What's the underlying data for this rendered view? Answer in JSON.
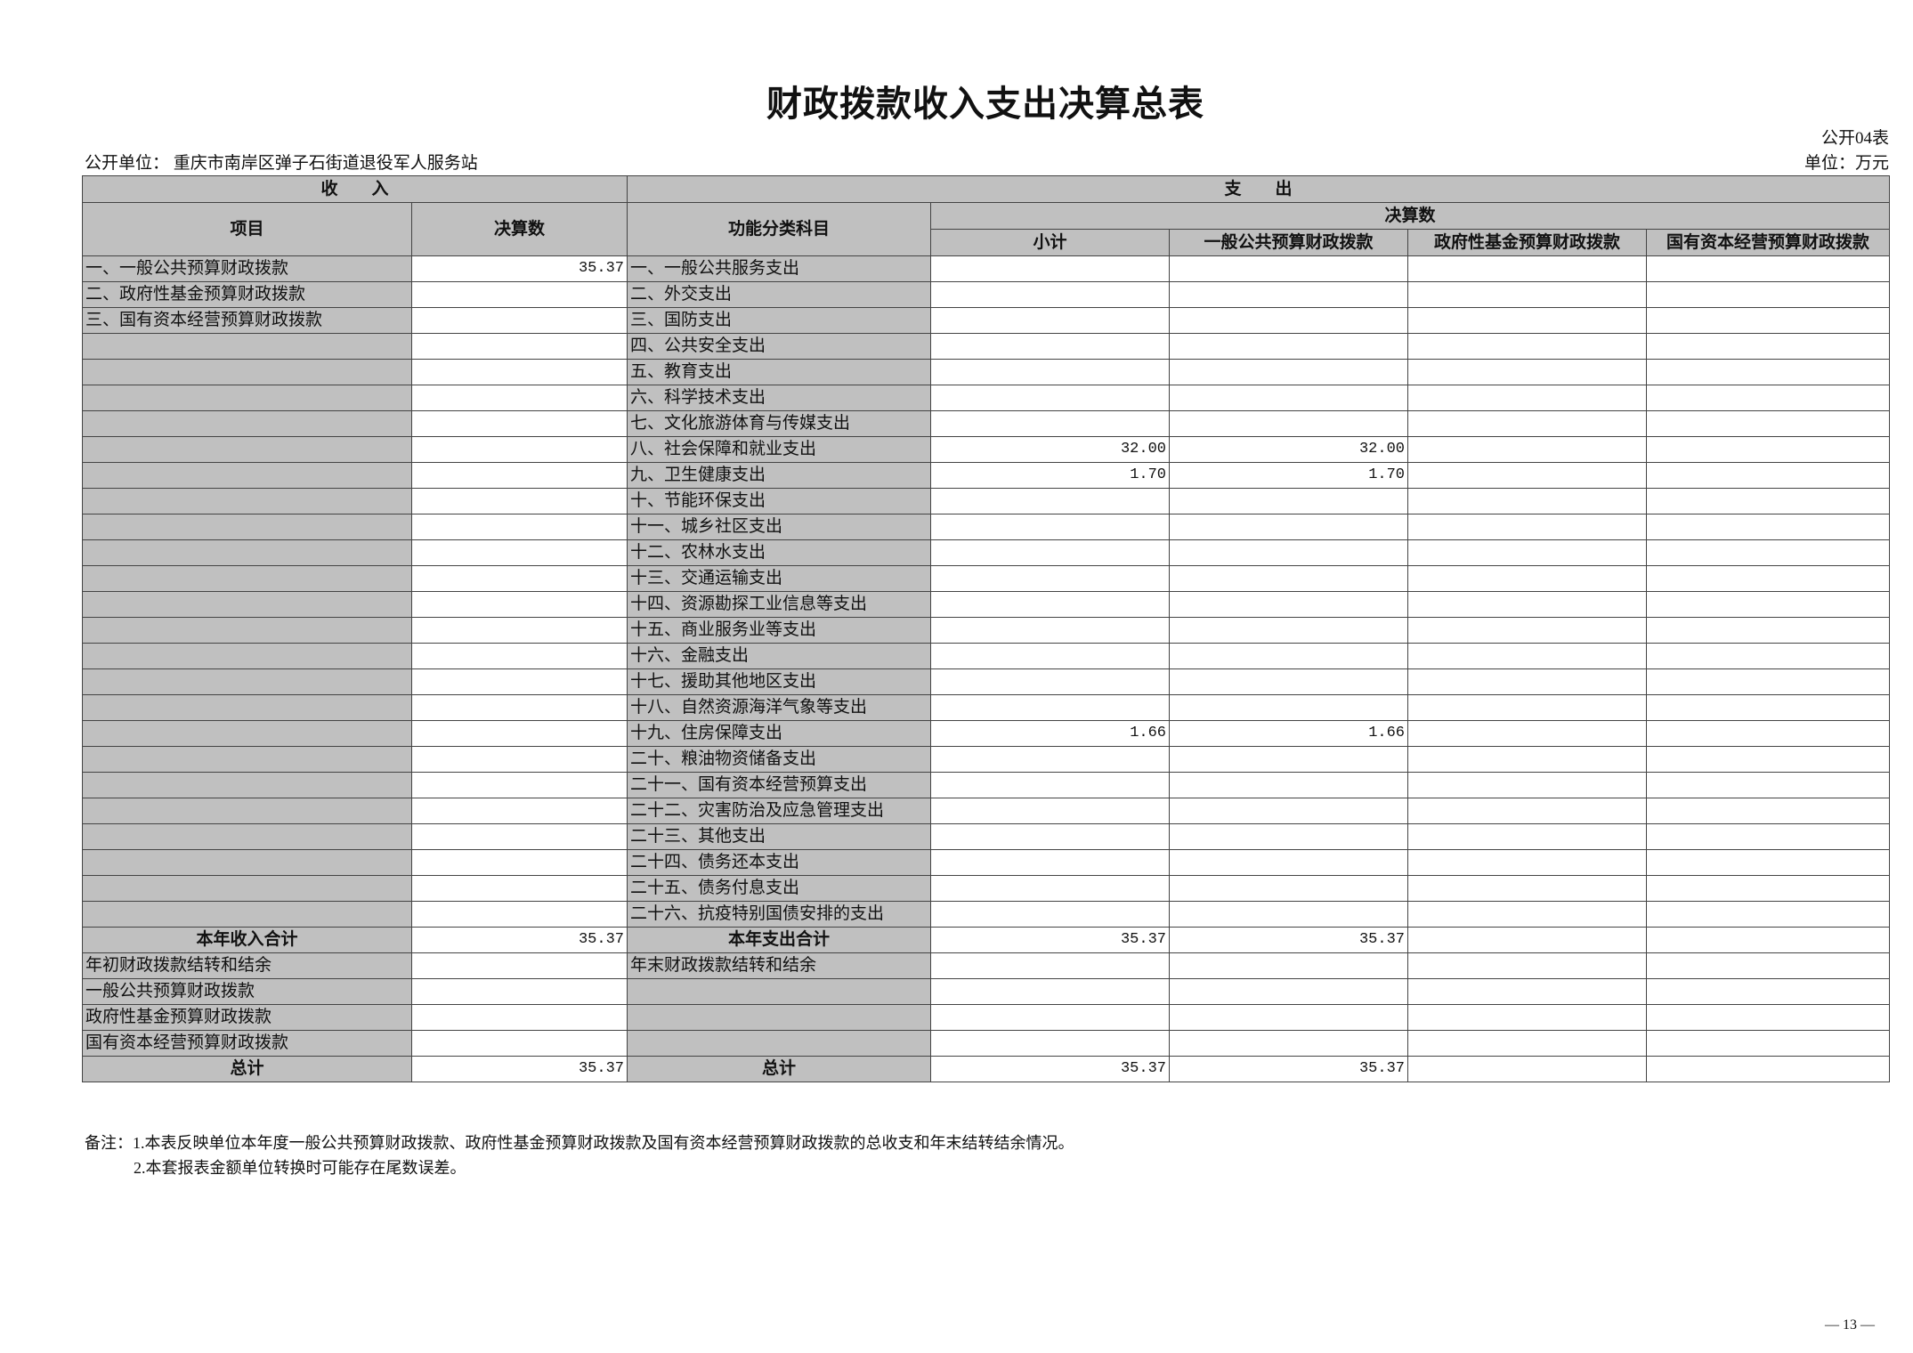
{
  "title": "财政拨款收入支出决算总表",
  "form_no": "公开04表",
  "unit_org_label": "公开单位：",
  "unit_org": "重庆市南岸区弹子石街道退役军人服务站",
  "unit_currency": "单位：万元",
  "headers": {
    "income": "收　　入",
    "expense": "支　　出",
    "item": "项目",
    "amount": "决算数",
    "func_category": "功能分类科目",
    "final_amount": "决算数",
    "subtotal": "小计",
    "general_public": "一般公共预算财政拨款",
    "gov_fund": "政府性基金预算财政拨款",
    "state_capital": "国有资本经营预算财政拨款"
  },
  "rows": [
    {
      "inc": "一、一般公共预算财政拨款",
      "inc_amt": "35.37",
      "exp": "一、一般公共服务支出",
      "sub": "",
      "gp": "",
      "gf": "",
      "sc": ""
    },
    {
      "inc": "二、政府性基金预算财政拨款",
      "inc_amt": "",
      "exp": "二、外交支出",
      "sub": "",
      "gp": "",
      "gf": "",
      "sc": ""
    },
    {
      "inc": "三、国有资本经营预算财政拨款",
      "inc_amt": "",
      "exp": "三、国防支出",
      "sub": "",
      "gp": "",
      "gf": "",
      "sc": ""
    },
    {
      "inc": "",
      "inc_amt": "",
      "exp": "四、公共安全支出",
      "sub": "",
      "gp": "",
      "gf": "",
      "sc": ""
    },
    {
      "inc": "",
      "inc_amt": "",
      "exp": "五、教育支出",
      "sub": "",
      "gp": "",
      "gf": "",
      "sc": ""
    },
    {
      "inc": "",
      "inc_amt": "",
      "exp": "六、科学技术支出",
      "sub": "",
      "gp": "",
      "gf": "",
      "sc": ""
    },
    {
      "inc": "",
      "inc_amt": "",
      "exp": "七、文化旅游体育与传媒支出",
      "sub": "",
      "gp": "",
      "gf": "",
      "sc": ""
    },
    {
      "inc": "",
      "inc_amt": "",
      "exp": "八、社会保障和就业支出",
      "sub": "32.00",
      "gp": "32.00",
      "gf": "",
      "sc": ""
    },
    {
      "inc": "",
      "inc_amt": "",
      "exp": "九、卫生健康支出",
      "sub": "1.70",
      "gp": "1.70",
      "gf": "",
      "sc": ""
    },
    {
      "inc": "",
      "inc_amt": "",
      "exp": "十、节能环保支出",
      "sub": "",
      "gp": "",
      "gf": "",
      "sc": ""
    },
    {
      "inc": "",
      "inc_amt": "",
      "exp": "十一、城乡社区支出",
      "sub": "",
      "gp": "",
      "gf": "",
      "sc": ""
    },
    {
      "inc": "",
      "inc_amt": "",
      "exp": "十二、农林水支出",
      "sub": "",
      "gp": "",
      "gf": "",
      "sc": ""
    },
    {
      "inc": "",
      "inc_amt": "",
      "exp": "十三、交通运输支出",
      "sub": "",
      "gp": "",
      "gf": "",
      "sc": ""
    },
    {
      "inc": "",
      "inc_amt": "",
      "exp": "十四、资源勘探工业信息等支出",
      "sub": "",
      "gp": "",
      "gf": "",
      "sc": ""
    },
    {
      "inc": "",
      "inc_amt": "",
      "exp": "十五、商业服务业等支出",
      "sub": "",
      "gp": "",
      "gf": "",
      "sc": ""
    },
    {
      "inc": "",
      "inc_amt": "",
      "exp": "十六、金融支出",
      "sub": "",
      "gp": "",
      "gf": "",
      "sc": ""
    },
    {
      "inc": "",
      "inc_amt": "",
      "exp": "十七、援助其他地区支出",
      "sub": "",
      "gp": "",
      "gf": "",
      "sc": ""
    },
    {
      "inc": "",
      "inc_amt": "",
      "exp": "十八、自然资源海洋气象等支出",
      "sub": "",
      "gp": "",
      "gf": "",
      "sc": ""
    },
    {
      "inc": "",
      "inc_amt": "",
      "exp": "十九、住房保障支出",
      "sub": "1.66",
      "gp": "1.66",
      "gf": "",
      "sc": ""
    },
    {
      "inc": "",
      "inc_amt": "",
      "exp": "二十、粮油物资储备支出",
      "sub": "",
      "gp": "",
      "gf": "",
      "sc": ""
    },
    {
      "inc": "",
      "inc_amt": "",
      "exp": "二十一、国有资本经营预算支出",
      "sub": "",
      "gp": "",
      "gf": "",
      "sc": ""
    },
    {
      "inc": "",
      "inc_amt": "",
      "exp": "二十二、灾害防治及应急管理支出",
      "sub": "",
      "gp": "",
      "gf": "",
      "sc": ""
    },
    {
      "inc": "",
      "inc_amt": "",
      "exp": "二十三、其他支出",
      "sub": "",
      "gp": "",
      "gf": "",
      "sc": ""
    },
    {
      "inc": "",
      "inc_amt": "",
      "exp": "二十四、债务还本支出",
      "sub": "",
      "gp": "",
      "gf": "",
      "sc": ""
    },
    {
      "inc": "",
      "inc_amt": "",
      "exp": "二十五、债务付息支出",
      "sub": "",
      "gp": "",
      "gf": "",
      "sc": ""
    },
    {
      "inc": "",
      "inc_amt": "",
      "exp": "二十六、抗疫特别国债安排的支出",
      "sub": "",
      "gp": "",
      "gf": "",
      "sc": ""
    },
    {
      "inc": "本年收入合计",
      "inc_amt": "35.37",
      "exp": "本年支出合计",
      "sub": "35.37",
      "gp": "35.37",
      "gf": "",
      "sc": "",
      "bold": true
    },
    {
      "inc": "年初财政拨款结转和结余",
      "inc_amt": "",
      "exp": "年末财政拨款结转和结余",
      "sub": "",
      "gp": "",
      "gf": "",
      "sc": ""
    },
    {
      "inc": "一般公共预算财政拨款",
      "inc_amt": "",
      "exp": "",
      "sub": "",
      "gp": "",
      "gf": "",
      "sc": "",
      "indent": true
    },
    {
      "inc": "政府性基金预算财政拨款",
      "inc_amt": "",
      "exp": "",
      "sub": "",
      "gp": "",
      "gf": "",
      "sc": "",
      "indent": true
    },
    {
      "inc": "国有资本经营预算财政拨款",
      "inc_amt": "",
      "exp": "",
      "sub": "",
      "gp": "",
      "gf": "",
      "sc": "",
      "indent": true
    },
    {
      "inc": "总计",
      "inc_amt": "35.37",
      "exp": "总计",
      "sub": "35.37",
      "gp": "35.37",
      "gf": "",
      "sc": "",
      "bold": true
    }
  ],
  "notes": [
    "备注：1.本表反映单位本年度一般公共预算财政拨款、政府性基金预算财政拨款及国有资本经营预算财政拨款的总收支和年末结转结余情况。",
    "2.本套报表金额单位转换时可能存在尾数误差。"
  ],
  "page_number": "— 13 —",
  "colors": {
    "header_fill": "#c0c0c0",
    "border": "#444444"
  }
}
